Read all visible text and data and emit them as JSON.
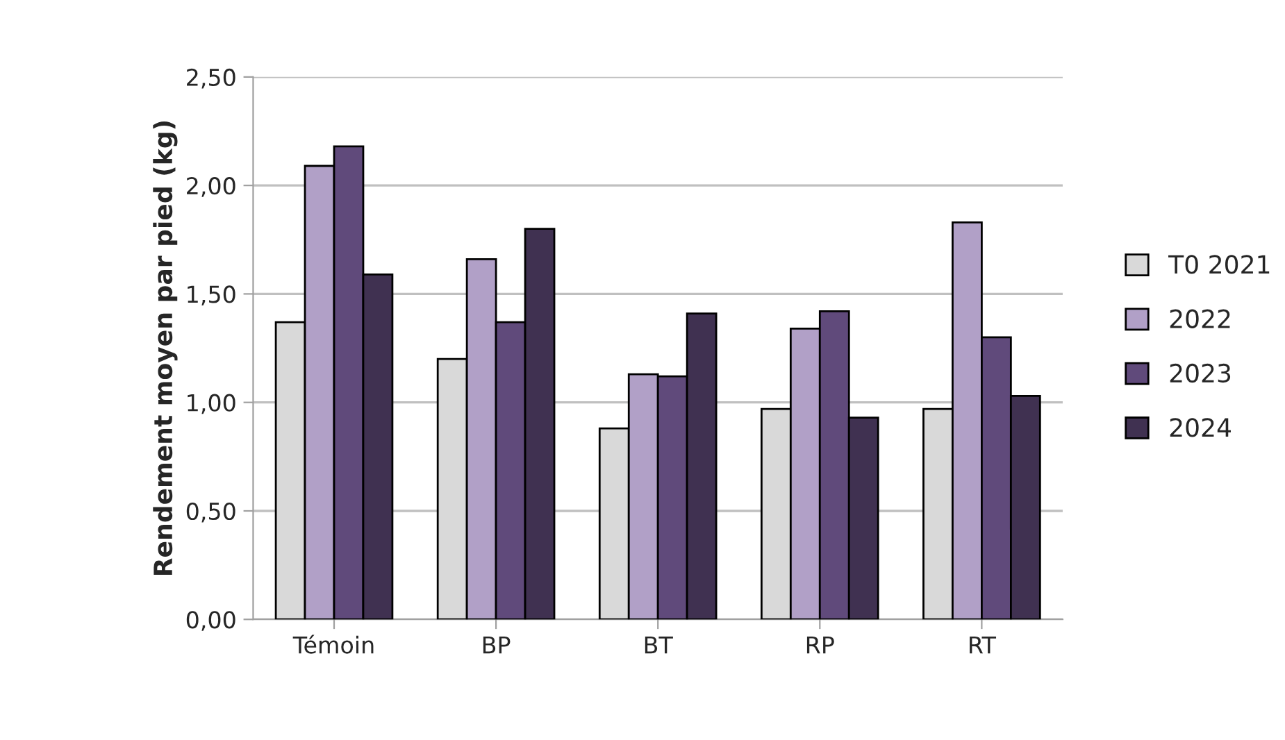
{
  "chart_data": {
    "type": "bar",
    "ylabel": "Rendement moyen par pied (kg)",
    "categories": [
      "Témoin",
      "BP",
      "BT",
      "RP",
      "RT"
    ],
    "series": [
      {
        "name": "T0 2021",
        "color": "#d9d9d9",
        "values": [
          1.37,
          1.2,
          0.88,
          0.97,
          0.97
        ]
      },
      {
        "name": "2022",
        "color": "#b1a0c7",
        "values": [
          2.09,
          1.66,
          1.13,
          1.34,
          1.83
        ]
      },
      {
        "name": "2023",
        "color": "#604a7b",
        "values": [
          2.18,
          1.37,
          1.12,
          1.42,
          1.3
        ]
      },
      {
        "name": "2024",
        "color": "#403151",
        "values": [
          1.59,
          1.8,
          1.41,
          0.93,
          1.03
        ]
      }
    ],
    "ylim": [
      0,
      2.5
    ],
    "yticks": [
      {
        "value": 0,
        "label": "0,00"
      },
      {
        "value": 0.5,
        "label": "0,50"
      },
      {
        "value": 1,
        "label": "1,00"
      },
      {
        "value": 1.5,
        "label": "1,50"
      },
      {
        "value": 2,
        "label": "2,00"
      },
      {
        "value": 2.5,
        "label": "2,50"
      }
    ],
    "grid": "y",
    "legend": "right"
  }
}
